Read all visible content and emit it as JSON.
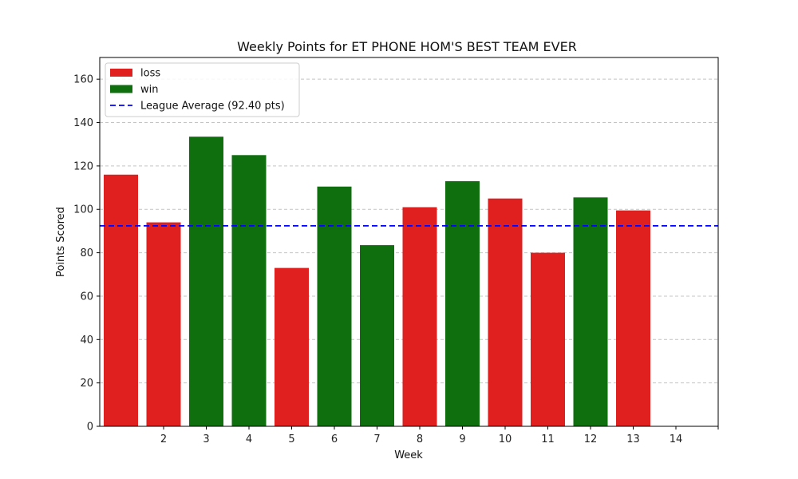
{
  "chart_data": {
    "type": "bar",
    "title": "Weekly Points for ET PHONE HOM'S BEST TEAM EVER",
    "xlabel": "Week",
    "ylabel": "Points Scored",
    "ylim": [
      0,
      170
    ],
    "yticks": [
      0,
      20,
      40,
      60,
      80,
      100,
      120,
      140,
      160
    ],
    "categories": [
      "",
      "2",
      "3",
      "4",
      "5",
      "6",
      "7",
      "8",
      "9",
      "10",
      "11",
      "12",
      "13",
      "14"
    ],
    "values": [
      116,
      94,
      133.5,
      125,
      73,
      110.5,
      83.5,
      101,
      113,
      105,
      80,
      105.5,
      99.5,
      null
    ],
    "results": [
      "loss",
      "loss",
      "win",
      "win",
      "loss",
      "win",
      "win",
      "loss",
      "win",
      "loss",
      "loss",
      "win",
      "loss",
      null
    ],
    "colors": {
      "loss": "#e01f1f",
      "win": "#0f6f0f",
      "average": "#0000ff",
      "grid": "#c4c4c4"
    },
    "grid": true,
    "legend_position": "top-left",
    "legend": [
      {
        "label": "loss",
        "kind": "loss"
      },
      {
        "label": "win",
        "kind": "win"
      },
      {
        "label": "League Average (92.40 pts)",
        "kind": "average"
      }
    ],
    "average": 92.4
  }
}
